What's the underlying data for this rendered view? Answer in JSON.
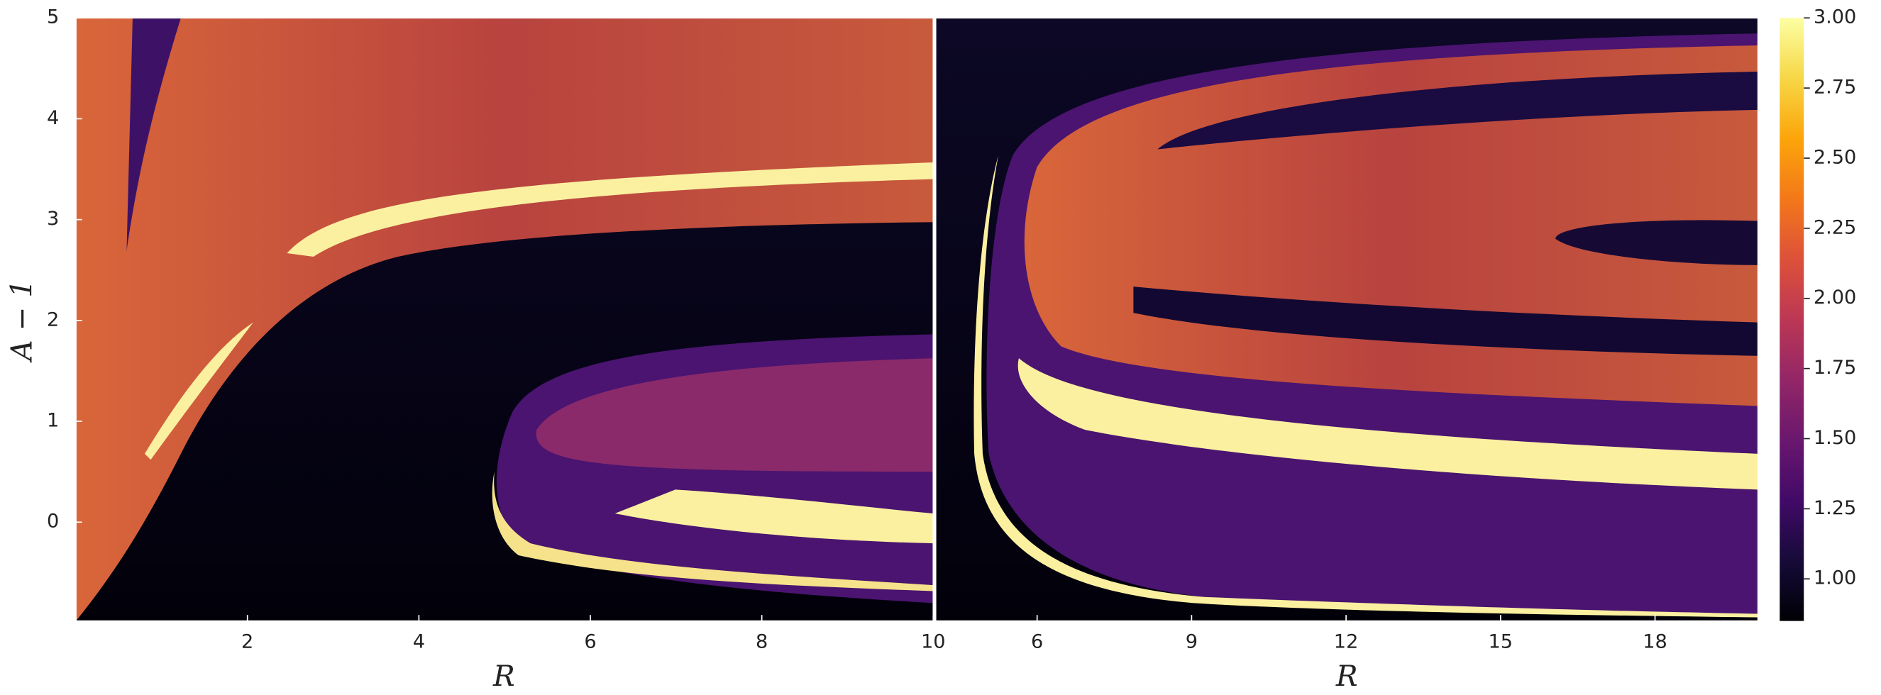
{
  "chart_data": [
    {
      "type": "heatmap",
      "xlabel": "R",
      "ylabel": "A − 1",
      "xlim": [
        0,
        10
      ],
      "ylim": [
        -0.98,
        5
      ],
      "xticks": [
        2,
        4,
        6,
        8,
        10
      ],
      "yticks": [
        0,
        1,
        2,
        3,
        4,
        5
      ]
    },
    {
      "type": "heatmap",
      "xlabel": "R",
      "xlim": [
        4.03,
        20.0
      ],
      "ylim": [
        -0.98,
        5
      ],
      "xticks": [
        6,
        9,
        12,
        15,
        18
      ]
    },
    {
      "type": "colorbar",
      "colormap": "inferno",
      "clim": [
        0.85,
        3.0
      ],
      "ticks": [
        {
          "value": 1.0,
          "label": "1.00"
        },
        {
          "value": 1.25,
          "label": "1.25"
        },
        {
          "value": 1.5,
          "label": "1.50"
        },
        {
          "value": 1.75,
          "label": "1.75"
        },
        {
          "value": 2.0,
          "label": "2.00"
        },
        {
          "value": 2.25,
          "label": "2.25"
        },
        {
          "value": 2.5,
          "label": "2.50"
        },
        {
          "value": 2.75,
          "label": "2.75"
        },
        {
          "value": 3.0,
          "label": "3.00"
        }
      ]
    }
  ]
}
